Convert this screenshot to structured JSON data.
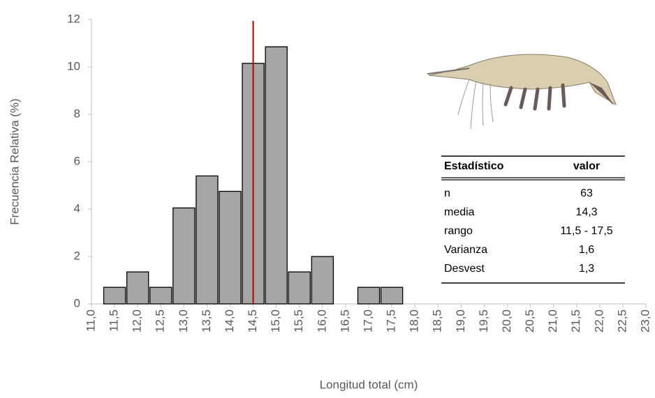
{
  "chart_data": {
    "type": "bar",
    "ylabel": "Frecuencia Relativa (%)",
    "xlabel": "Longitud total (cm)",
    "x": [
      11.5,
      12.0,
      12.5,
      13.0,
      13.5,
      14.0,
      14.5,
      15.0,
      15.5,
      16.0,
      17.0,
      17.5
    ],
    "values": [
      0.7,
      1.35,
      0.7,
      4.05,
      5.4,
      4.75,
      10.15,
      10.85,
      1.35,
      2.0,
      0.7,
      0.7
    ],
    "color": "#a6a6a6",
    "vline": 14.5,
    "vline_color": "#c00000",
    "xlim": [
      11,
      23
    ],
    "xticks": [
      {
        "value": 11,
        "label": "11,0"
      },
      {
        "value": 11.5,
        "label": "11,5"
      },
      {
        "value": 12,
        "label": "12,0"
      },
      {
        "value": 12.5,
        "label": "12,5"
      },
      {
        "value": 13,
        "label": "13,0"
      },
      {
        "value": 13.5,
        "label": "13,5"
      },
      {
        "value": 14,
        "label": "14,0"
      },
      {
        "value": 14.5,
        "label": "14,5"
      },
      {
        "value": 15,
        "label": "15,0"
      },
      {
        "value": 15.5,
        "label": "15,5"
      },
      {
        "value": 16,
        "label": "16,0"
      },
      {
        "value": 16.5,
        "label": "16,5"
      },
      {
        "value": 17,
        "label": "17,0"
      },
      {
        "value": 17.5,
        "label": "17,5"
      },
      {
        "value": 18,
        "label": "18,0"
      },
      {
        "value": 18.5,
        "label": "18,5"
      },
      {
        "value": 19,
        "label": "19,0"
      },
      {
        "value": 19.5,
        "label": "19,5"
      },
      {
        "value": 20,
        "label": "20,0"
      },
      {
        "value": 20.5,
        "label": "20,5"
      },
      {
        "value": 21,
        "label": "21,0"
      },
      {
        "value": 21.5,
        "label": "21,5"
      },
      {
        "value": 22,
        "label": "22,0"
      },
      {
        "value": 22.5,
        "label": "22,5"
      },
      {
        "value": 23,
        "label": "23,0"
      }
    ],
    "ylim": [
      0,
      12
    ],
    "yticks": [
      0,
      2,
      4,
      6,
      8,
      10,
      12
    ],
    "grid": false,
    "table": {
      "columns": [
        "Estadístico",
        "valor"
      ],
      "rows": [
        [
          "n",
          "63"
        ],
        [
          "media",
          "14,3"
        ],
        [
          "rango",
          "11,5 - 17,5"
        ],
        [
          "Varianza",
          "1,6"
        ],
        [
          "Desvest",
          "1,3"
        ]
      ]
    }
  }
}
